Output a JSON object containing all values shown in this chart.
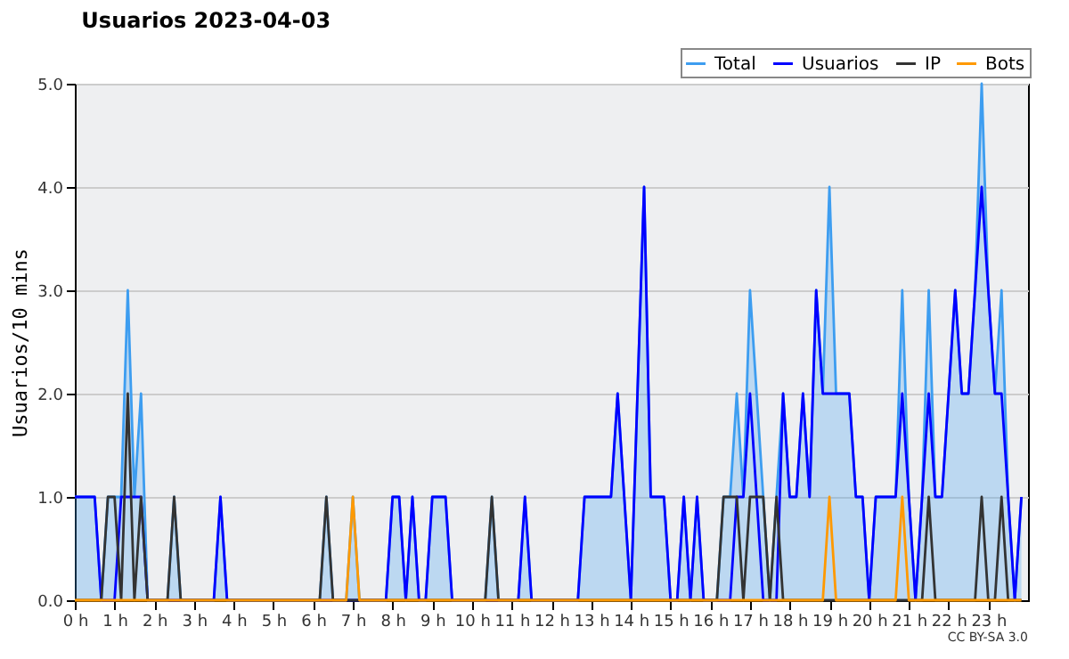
{
  "chart_data": {
    "type": "line",
    "title": "Usuarios  2023-04-03",
    "ylabel": "Usuarios/10 mins",
    "annotations": [
      "CC BY-SA 3.0"
    ],
    "x": [
      "2023-04-03T00:00",
      "2023-04-03T00:10",
      "2023-04-03T00:20",
      "2023-04-03T00:30",
      "2023-04-03T00:40",
      "2023-04-03T00:50",
      "2023-04-03T01:00",
      "2023-04-03T01:10",
      "2023-04-03T01:20",
      "2023-04-03T01:30",
      "2023-04-03T01:40",
      "2023-04-03T01:50",
      "2023-04-03T02:00",
      "2023-04-03T02:10",
      "2023-04-03T02:20",
      "2023-04-03T02:30",
      "2023-04-03T02:40",
      "2023-04-03T02:50",
      "2023-04-03T03:00",
      "2023-04-03T03:10",
      "2023-04-03T03:20",
      "2023-04-03T03:30",
      "2023-04-03T03:40",
      "2023-04-03T03:50",
      "2023-04-03T04:00",
      "2023-04-03T04:10",
      "2023-04-03T04:20",
      "2023-04-03T04:30",
      "2023-04-03T04:40",
      "2023-04-03T04:50",
      "2023-04-03T05:00",
      "2023-04-03T05:10",
      "2023-04-03T05:20",
      "2023-04-03T05:30",
      "2023-04-03T05:40",
      "2023-04-03T05:50",
      "2023-04-03T06:00",
      "2023-04-03T06:10",
      "2023-04-03T06:20",
      "2023-04-03T06:30",
      "2023-04-03T06:40",
      "2023-04-03T06:50",
      "2023-04-03T07:00",
      "2023-04-03T07:10",
      "2023-04-03T07:20",
      "2023-04-03T07:30",
      "2023-04-03T07:40",
      "2023-04-03T07:50",
      "2023-04-03T08:00",
      "2023-04-03T08:10",
      "2023-04-03T08:20",
      "2023-04-03T08:30",
      "2023-04-03T08:40",
      "2023-04-03T08:50",
      "2023-04-03T09:00",
      "2023-04-03T09:10",
      "2023-04-03T09:20",
      "2023-04-03T09:30",
      "2023-04-03T09:40",
      "2023-04-03T09:50",
      "2023-04-03T10:00",
      "2023-04-03T10:10",
      "2023-04-03T10:20",
      "2023-04-03T10:30",
      "2023-04-03T10:40",
      "2023-04-03T10:50",
      "2023-04-03T11:00",
      "2023-04-03T11:10",
      "2023-04-03T11:20",
      "2023-04-03T11:30",
      "2023-04-03T11:40",
      "2023-04-03T11:50",
      "2023-04-03T12:00",
      "2023-04-03T12:10",
      "2023-04-03T12:20",
      "2023-04-03T12:30",
      "2023-04-03T12:40",
      "2023-04-03T12:50",
      "2023-04-03T13:00",
      "2023-04-03T13:10",
      "2023-04-03T13:20",
      "2023-04-03T13:30",
      "2023-04-03T13:40",
      "2023-04-03T13:50",
      "2023-04-03T14:00",
      "2023-04-03T14:10",
      "2023-04-03T14:20",
      "2023-04-03T14:30",
      "2023-04-03T14:40",
      "2023-04-03T14:50",
      "2023-04-03T15:00",
      "2023-04-03T15:10",
      "2023-04-03T15:20",
      "2023-04-03T15:30",
      "2023-04-03T15:40",
      "2023-04-03T15:50",
      "2023-04-03T16:00",
      "2023-04-03T16:10",
      "2023-04-03T16:20",
      "2023-04-03T16:30",
      "2023-04-03T16:40",
      "2023-04-03T16:50",
      "2023-04-03T17:00",
      "2023-04-03T17:10",
      "2023-04-03T17:20",
      "2023-04-03T17:30",
      "2023-04-03T17:40",
      "2023-04-03T17:50",
      "2023-04-03T18:00",
      "2023-04-03T18:10",
      "2023-04-03T18:20",
      "2023-04-03T18:30",
      "2023-04-03T18:40",
      "2023-04-03T18:50",
      "2023-04-03T19:00",
      "2023-04-03T19:10",
      "2023-04-03T19:20",
      "2023-04-03T19:30",
      "2023-04-03T19:40",
      "2023-04-03T19:50",
      "2023-04-03T20:00",
      "2023-04-03T20:10",
      "2023-04-03T20:20",
      "2023-04-03T20:30",
      "2023-04-03T20:40",
      "2023-04-03T20:50",
      "2023-04-03T21:00",
      "2023-04-03T21:10",
      "2023-04-03T21:20",
      "2023-04-03T21:30",
      "2023-04-03T21:40",
      "2023-04-03T21:50",
      "2023-04-03T22:00",
      "2023-04-03T22:10",
      "2023-04-03T22:20",
      "2023-04-03T22:30",
      "2023-04-03T22:40",
      "2023-04-03T22:50",
      "2023-04-03T23:00",
      "2023-04-03T23:10",
      "2023-04-03T23:20",
      "2023-04-03T23:30",
      "2023-04-03T23:40",
      "2023-04-03T23:50"
    ],
    "xlim": [
      "2023-04-03T00:00",
      "2023-04-04T00:00"
    ],
    "xticks": [
      {
        "value": "2023-04-03T00:00",
        "label": "0 h"
      },
      {
        "value": "2023-04-03T01:00",
        "label": "1 h"
      },
      {
        "value": "2023-04-03T02:00",
        "label": "2 h"
      },
      {
        "value": "2023-04-03T03:00",
        "label": "3 h"
      },
      {
        "value": "2023-04-03T04:00",
        "label": "4 h"
      },
      {
        "value": "2023-04-03T05:00",
        "label": "5 h"
      },
      {
        "value": "2023-04-03T06:00",
        "label": "6 h"
      },
      {
        "value": "2023-04-03T07:00",
        "label": "7 h"
      },
      {
        "value": "2023-04-03T08:00",
        "label": "8 h"
      },
      {
        "value": "2023-04-03T09:00",
        "label": "9 h"
      },
      {
        "value": "2023-04-03T10:00",
        "label": "10 h"
      },
      {
        "value": "2023-04-03T11:00",
        "label": "11 h"
      },
      {
        "value": "2023-04-03T12:00",
        "label": "12 h"
      },
      {
        "value": "2023-04-03T13:00",
        "label": "13 h"
      },
      {
        "value": "2023-04-03T14:00",
        "label": "14 h"
      },
      {
        "value": "2023-04-03T15:00",
        "label": "15 h"
      },
      {
        "value": "2023-04-03T16:00",
        "label": "16 h"
      },
      {
        "value": "2023-04-03T17:00",
        "label": "17 h"
      },
      {
        "value": "2023-04-03T18:00",
        "label": "18 h"
      },
      {
        "value": "2023-04-03T19:00",
        "label": "19 h"
      },
      {
        "value": "2023-04-03T20:00",
        "label": "20 h"
      },
      {
        "value": "2023-04-03T21:00",
        "label": "21 h"
      },
      {
        "value": "2023-04-03T22:00",
        "label": "22 h"
      },
      {
        "value": "2023-04-03T23:00",
        "label": "23 h"
      }
    ],
    "ylim": [
      0,
      5
    ],
    "yticks": [
      {
        "value": 0,
        "label": "0.0"
      },
      {
        "value": 1,
        "label": "1.0"
      },
      {
        "value": 2,
        "label": "2.0"
      },
      {
        "value": 3,
        "label": "3.0"
      },
      {
        "value": 4,
        "label": "4.0"
      },
      {
        "value": 5,
        "label": "5.0"
      }
    ],
    "grid": "y",
    "legend": "top right",
    "series": [
      {
        "name": "Total",
        "type": "area",
        "color": "#3d9df0",
        "values": [
          1,
          1,
          1,
          1,
          0,
          1,
          1,
          1,
          3,
          1,
          2,
          0,
          0,
          0,
          0,
          1,
          0,
          0,
          0,
          0,
          0,
          0,
          1,
          0,
          0,
          0,
          0,
          0,
          0,
          0,
          0,
          0,
          0,
          0,
          0,
          0,
          0,
          0,
          1,
          0,
          0,
          0,
          1,
          0,
          0,
          0,
          0,
          0,
          1,
          1,
          0,
          1,
          0,
          0,
          1,
          1,
          1,
          0,
          0,
          0,
          0,
          0,
          0,
          1,
          0,
          0,
          0,
          0,
          1,
          0,
          0,
          0,
          0,
          0,
          0,
          0,
          0,
          1,
          1,
          1,
          1,
          1,
          2,
          1,
          0,
          2,
          4,
          1,
          1,
          1,
          0,
          0,
          1,
          0,
          1,
          0,
          0,
          0,
          1,
          1,
          2,
          1,
          3,
          2,
          1,
          0,
          1,
          2,
          1,
          1,
          2,
          1,
          3,
          2,
          4,
          2,
          2,
          2,
          1,
          1,
          0,
          1,
          1,
          1,
          1,
          3,
          1,
          0,
          1,
          3,
          1,
          1,
          2,
          3,
          2,
          2,
          3,
          5,
          3,
          2,
          3,
          1,
          0,
          1
        ]
      },
      {
        "name": "Usuarios",
        "color": "#0000ff",
        "values": [
          1,
          1,
          1,
          1,
          0,
          0,
          0,
          1,
          1,
          1,
          1,
          0,
          0,
          0,
          0,
          0,
          0,
          0,
          0,
          0,
          0,
          0,
          1,
          0,
          0,
          0,
          0,
          0,
          0,
          0,
          0,
          0,
          0,
          0,
          0,
          0,
          0,
          0,
          0,
          0,
          0,
          0,
          0,
          0,
          0,
          0,
          0,
          0,
          1,
          1,
          0,
          1,
          0,
          0,
          1,
          1,
          1,
          0,
          0,
          0,
          0,
          0,
          0,
          0,
          0,
          0,
          0,
          0,
          1,
          0,
          0,
          0,
          0,
          0,
          0,
          0,
          0,
          1,
          1,
          1,
          1,
          1,
          2,
          1,
          0,
          2,
          4,
          1,
          1,
          1,
          0,
          0,
          1,
          0,
          1,
          0,
          0,
          0,
          0,
          0,
          1,
          1,
          2,
          1,
          0,
          0,
          0,
          2,
          1,
          1,
          2,
          1,
          3,
          2,
          2,
          2,
          2,
          2,
          1,
          1,
          0,
          1,
          1,
          1,
          1,
          2,
          1,
          0,
          1,
          2,
          1,
          1,
          2,
          3,
          2,
          2,
          3,
          4,
          3,
          2,
          2,
          1,
          0,
          1
        ]
      },
      {
        "name": "IP",
        "color": "#333333",
        "values": [
          0,
          0,
          0,
          0,
          0,
          1,
          1,
          0,
          2,
          0,
          1,
          0,
          0,
          0,
          0,
          1,
          0,
          0,
          0,
          0,
          0,
          0,
          0,
          0,
          0,
          0,
          0,
          0,
          0,
          0,
          0,
          0,
          0,
          0,
          0,
          0,
          0,
          0,
          1,
          0,
          0,
          0,
          0,
          0,
          0,
          0,
          0,
          0,
          0,
          0,
          0,
          0,
          0,
          0,
          0,
          0,
          0,
          0,
          0,
          0,
          0,
          0,
          0,
          1,
          0,
          0,
          0,
          0,
          0,
          0,
          0,
          0,
          0,
          0,
          0,
          0,
          0,
          0,
          0,
          0,
          0,
          0,
          0,
          0,
          0,
          0,
          0,
          0,
          0,
          0,
          0,
          0,
          0,
          0,
          0,
          0,
          0,
          0,
          1,
          1,
          1,
          0,
          1,
          1,
          1,
          0,
          1,
          0,
          0,
          0,
          0,
          0,
          0,
          0,
          0,
          0,
          0,
          0,
          0,
          0,
          0,
          0,
          0,
          0,
          0,
          0,
          0,
          0,
          0,
          1,
          0,
          0,
          0,
          0,
          0,
          0,
          0,
          1,
          0,
          0,
          1,
          0,
          0,
          0
        ]
      },
      {
        "name": "Bots",
        "color": "#ff9900",
        "values": [
          0,
          0,
          0,
          0,
          0,
          0,
          0,
          0,
          0,
          0,
          0,
          0,
          0,
          0,
          0,
          0,
          0,
          0,
          0,
          0,
          0,
          0,
          0,
          0,
          0,
          0,
          0,
          0,
          0,
          0,
          0,
          0,
          0,
          0,
          0,
          0,
          0,
          0,
          0,
          0,
          0,
          0,
          1,
          0,
          0,
          0,
          0,
          0,
          0,
          0,
          0,
          0,
          0,
          0,
          0,
          0,
          0,
          0,
          0,
          0,
          0,
          0,
          0,
          0,
          0,
          0,
          0,
          0,
          0,
          0,
          0,
          0,
          0,
          0,
          0,
          0,
          0,
          0,
          0,
          0,
          0,
          0,
          0,
          0,
          0,
          0,
          0,
          0,
          0,
          0,
          0,
          0,
          0,
          0,
          0,
          0,
          0,
          0,
          0,
          0,
          0,
          0,
          0,
          0,
          0,
          0,
          0,
          0,
          0,
          0,
          0,
          0,
          0,
          0,
          1,
          0,
          0,
          0,
          0,
          0,
          0,
          0,
          0,
          0,
          0,
          1,
          0,
          0,
          0,
          0,
          0,
          0,
          0,
          0,
          0,
          0,
          0,
          0,
          0,
          0,
          0,
          0,
          0,
          0
        ]
      }
    ]
  }
}
